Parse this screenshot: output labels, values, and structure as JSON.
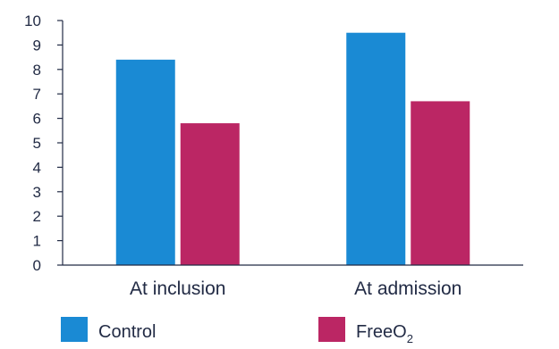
{
  "chart_data": {
    "type": "bar",
    "categories": [
      "At inclusion",
      "At admission"
    ],
    "series": [
      {
        "name": "Control",
        "color": "#1a8ad4",
        "values": [
          8.4,
          9.5
        ]
      },
      {
        "name": "FreeO",
        "name_subscript": "2",
        "color": "#bb2664",
        "values": [
          5.8,
          6.7
        ]
      }
    ],
    "ylim": [
      0,
      10
    ],
    "yticks": [
      0,
      1,
      2,
      3,
      4,
      5,
      6,
      7,
      8,
      9,
      10
    ],
    "grid": false,
    "legend_position": "bottom-left",
    "title": "",
    "xlabel": "",
    "ylabel": ""
  }
}
